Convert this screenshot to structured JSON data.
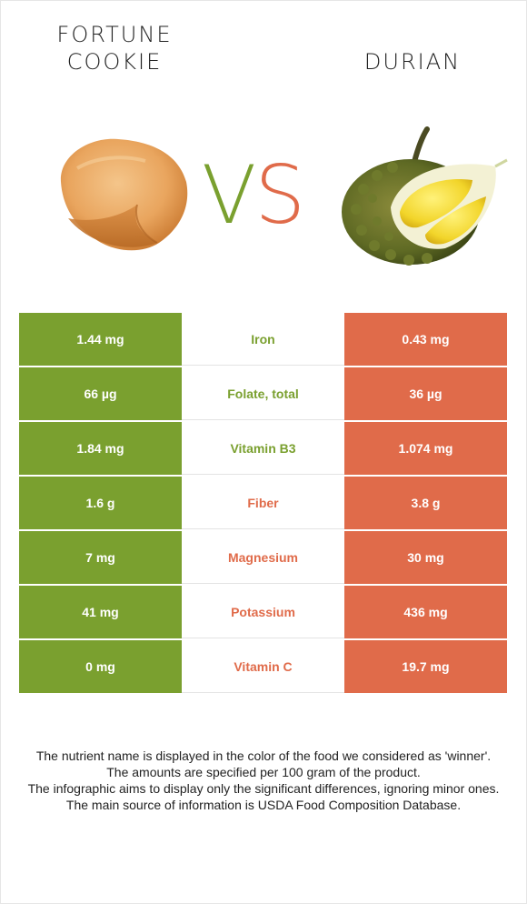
{
  "header": {
    "left_food": "FORTUNE\nCOOKIE",
    "right_food": "DURIAN",
    "vs_v": "V",
    "vs_s": "S"
  },
  "colors": {
    "left": "#7aa02f",
    "right": "#e06b4a"
  },
  "rows": [
    {
      "left": "1.44 mg",
      "nutrient": "Iron",
      "right": "0.43 mg",
      "winner": "left"
    },
    {
      "left": "66 µg",
      "nutrient": "Folate, total",
      "right": "36 µg",
      "winner": "left"
    },
    {
      "left": "1.84 mg",
      "nutrient": "Vitamin B3",
      "right": "1.074 mg",
      "winner": "left"
    },
    {
      "left": "1.6 g",
      "nutrient": "Fiber",
      "right": "3.8 g",
      "winner": "right"
    },
    {
      "left": "7 mg",
      "nutrient": "Magnesium",
      "right": "30 mg",
      "winner": "right"
    },
    {
      "left": "41 mg",
      "nutrient": "Potassium",
      "right": "436 mg",
      "winner": "right"
    },
    {
      "left": "0 mg",
      "nutrient": "Vitamin C",
      "right": "19.7 mg",
      "winner": "right"
    }
  ],
  "notes": [
    "The nutrient name is displayed in the color of the food we considered as 'winner'.",
    "The amounts are specified per 100 gram of the product.",
    "The infographic aims to display only the significant differences, ignoring minor ones.",
    "The main source of information is USDA Food Composition Database."
  ]
}
